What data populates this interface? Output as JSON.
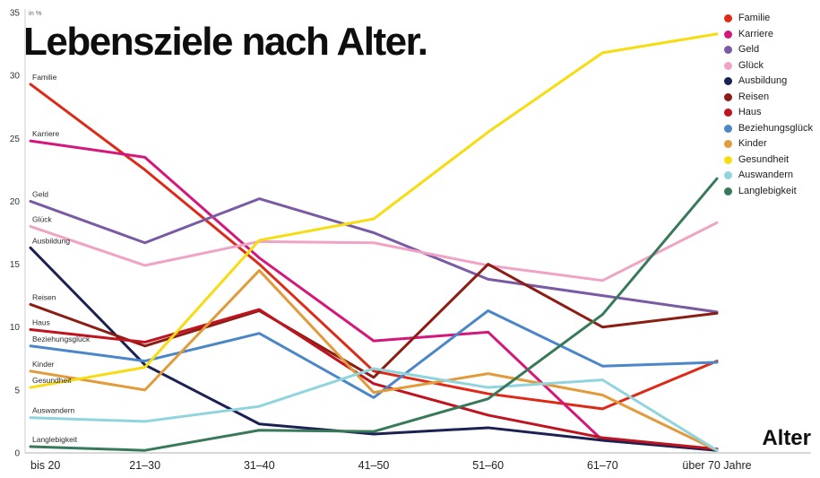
{
  "chart_data": {
    "type": "line",
    "title": "Lebensziele nach Alter.",
    "unit_label": "in %",
    "xlabel": "Alter",
    "ylim": [
      0,
      35
    ],
    "yticks": [
      0,
      5,
      10,
      15,
      20,
      25,
      30,
      35
    ],
    "categories": [
      "bis 20",
      "21–30",
      "31–40",
      "41–50",
      "51–60",
      "61–70",
      "über 70 Jahre"
    ],
    "legend_position": "top-right",
    "grid": false,
    "series": [
      {
        "name": "Familie",
        "color": "#dd2a18",
        "values": [
          29.3,
          22.5,
          15.0,
          6.5,
          4.7,
          3.5,
          7.3
        ]
      },
      {
        "name": "Karriere",
        "color": "#d4187b",
        "values": [
          24.8,
          23.5,
          15.5,
          8.9,
          9.6,
          1.0,
          0.3
        ]
      },
      {
        "name": "Geld",
        "color": "#7a5ba3",
        "values": [
          20.0,
          16.7,
          20.2,
          17.5,
          13.8,
          12.5,
          11.2
        ]
      },
      {
        "name": "Glück",
        "color": "#efa3c5",
        "values": [
          18.0,
          14.9,
          16.8,
          16.7,
          14.9,
          13.7,
          18.3
        ]
      },
      {
        "name": "Ausbildung",
        "color": "#1b2153",
        "values": [
          16.3,
          7.0,
          2.3,
          1.5,
          2.0,
          1.0,
          0.2
        ]
      },
      {
        "name": "Reisen",
        "color": "#8c1d14",
        "values": [
          11.8,
          8.5,
          11.3,
          6.0,
          15.0,
          10.0,
          11.1
        ]
      },
      {
        "name": "Haus",
        "color": "#bf141f",
        "values": [
          9.8,
          8.8,
          11.4,
          5.5,
          3.0,
          1.2,
          0.3
        ]
      },
      {
        "name": "Beziehungsglück",
        "color": "#4b86c8",
        "values": [
          8.5,
          7.3,
          9.5,
          4.4,
          11.3,
          6.9,
          7.2
        ]
      },
      {
        "name": "Kinder",
        "color": "#e29b3b",
        "values": [
          6.5,
          5.0,
          14.5,
          4.8,
          6.3,
          4.6,
          0.2
        ]
      },
      {
        "name": "Gesundheit",
        "color": "#f6dc10",
        "values": [
          5.2,
          6.8,
          16.9,
          18.6,
          25.5,
          31.8,
          33.3
        ]
      },
      {
        "name": "Auswandern",
        "color": "#90d4dd",
        "values": [
          2.8,
          2.5,
          3.7,
          6.7,
          5.2,
          5.8,
          0.2
        ]
      },
      {
        "name": "Langlebigkeit",
        "color": "#38795a",
        "values": [
          0.5,
          0.2,
          1.8,
          1.7,
          4.3,
          11.0,
          21.8
        ]
      }
    ]
  }
}
